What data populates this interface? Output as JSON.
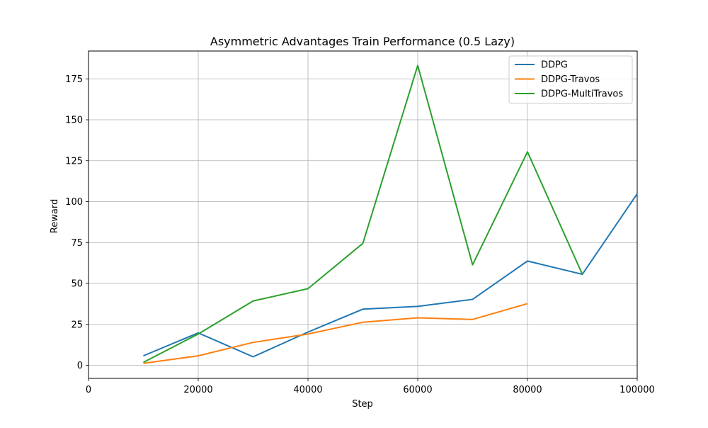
{
  "chart_data": {
    "type": "line",
    "title": "Asymmetric Advantages Train Performance (0.5 Lazy)",
    "xlabel": "Step",
    "ylabel": "Reward",
    "xlim": [
      0,
      100000
    ],
    "ylim": [
      -8,
      192
    ],
    "xticks": [
      0,
      20000,
      40000,
      60000,
      80000,
      100000
    ],
    "yticks": [
      0,
      25,
      50,
      75,
      100,
      125,
      150,
      175
    ],
    "grid": true,
    "legend_position": "upper right",
    "series": [
      {
        "name": "DDPG",
        "color": "#1f77b4",
        "x": [
          10000,
          20000,
          30000,
          40000,
          50000,
          60000,
          70000,
          80000,
          90000,
          100000
        ],
        "y": [
          5.8,
          19.8,
          5.2,
          20.3,
          34.3,
          36.0,
          40.3,
          63.7,
          55.6,
          104.8
        ]
      },
      {
        "name": "DDPG-Travos",
        "color": "#ff7f0e",
        "x": [
          10000,
          20000,
          30000,
          40000,
          50000,
          60000,
          70000,
          80000
        ],
        "y": [
          1.2,
          5.8,
          14.0,
          19.1,
          26.3,
          29.0,
          28.0,
          37.7
        ]
      },
      {
        "name": "DDPG-MultiTravos",
        "color": "#2ca02c",
        "x": [
          10000,
          20000,
          30000,
          40000,
          50000,
          60000,
          70000,
          80000,
          90000
        ],
        "y": [
          1.8,
          19.1,
          39.3,
          46.8,
          74.5,
          183.2,
          61.4,
          130.4,
          55.6
        ]
      }
    ]
  }
}
